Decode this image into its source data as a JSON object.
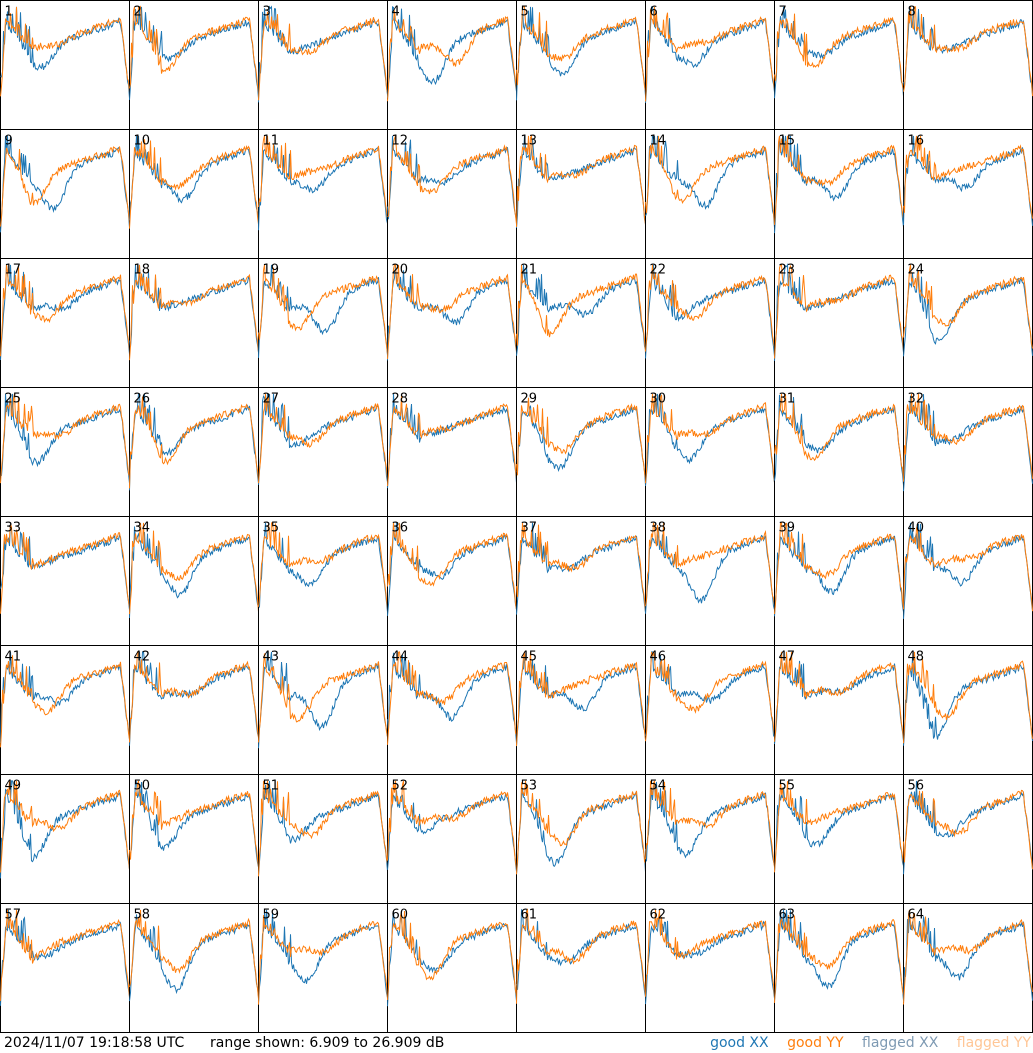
{
  "footer": {
    "timestamp": "2024/11/07 19:18:58 UTC",
    "range_text": "range shown: 6.909 to 26.909 dB"
  },
  "legend": [
    {
      "key": "good_xx",
      "label": "good XX",
      "color": "#1f77b4"
    },
    {
      "key": "good_yy",
      "label": "good YY",
      "color": "#ff7f0e"
    },
    {
      "key": "flagged_xx",
      "label": "flagged XX",
      "color": "#7e9ab3"
    },
    {
      "key": "flagged_yy",
      "label": "flagged YY",
      "color": "#ffc696"
    }
  ],
  "chart_data": {
    "type": "line",
    "title": "",
    "xlabel": "",
    "ylabel": "",
    "ylim": [
      6.909,
      26.909
    ],
    "grid_layout": {
      "rows": 8,
      "cols": 8
    },
    "panels": [
      {
        "id": "1"
      },
      {
        "id": "2"
      },
      {
        "id": "3"
      },
      {
        "id": "4"
      },
      {
        "id": "5"
      },
      {
        "id": "6"
      },
      {
        "id": "7"
      },
      {
        "id": "8"
      },
      {
        "id": "9"
      },
      {
        "id": "10"
      },
      {
        "id": "11"
      },
      {
        "id": "12"
      },
      {
        "id": "13"
      },
      {
        "id": "14"
      },
      {
        "id": "15"
      },
      {
        "id": "16"
      },
      {
        "id": "17"
      },
      {
        "id": "18"
      },
      {
        "id": "19"
      },
      {
        "id": "20"
      },
      {
        "id": "21"
      },
      {
        "id": "22"
      },
      {
        "id": "23"
      },
      {
        "id": "24"
      },
      {
        "id": "25"
      },
      {
        "id": "26"
      },
      {
        "id": "27"
      },
      {
        "id": "28"
      },
      {
        "id": "29"
      },
      {
        "id": "30"
      },
      {
        "id": "31"
      },
      {
        "id": "32"
      },
      {
        "id": "33"
      },
      {
        "id": "34"
      },
      {
        "id": "35"
      },
      {
        "id": "36"
      },
      {
        "id": "37"
      },
      {
        "id": "38"
      },
      {
        "id": "39"
      },
      {
        "id": "40"
      },
      {
        "id": "41"
      },
      {
        "id": "42"
      },
      {
        "id": "43"
      },
      {
        "id": "44"
      },
      {
        "id": "45"
      },
      {
        "id": "46"
      },
      {
        "id": "47"
      },
      {
        "id": "48"
      },
      {
        "id": "49"
      },
      {
        "id": "50"
      },
      {
        "id": "51"
      },
      {
        "id": "52"
      },
      {
        "id": "53"
      },
      {
        "id": "54"
      },
      {
        "id": "55"
      },
      {
        "id": "56"
      },
      {
        "id": "57"
      },
      {
        "id": "58"
      },
      {
        "id": "59"
      },
      {
        "id": "60"
      },
      {
        "id": "61"
      },
      {
        "id": "62"
      },
      {
        "id": "63"
      },
      {
        "id": "64"
      }
    ]
  }
}
